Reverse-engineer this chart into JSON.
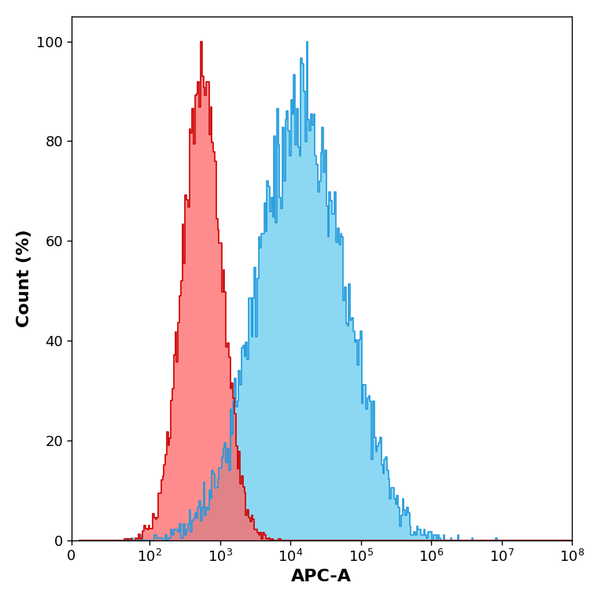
{
  "red_fill_color": "#FF6666",
  "red_line_color": "#CC0000",
  "blue_fill_color": "#66CCEE",
  "blue_line_color": "#2299DD",
  "red_fill_alpha": 0.75,
  "blue_fill_alpha": 0.75,
  "xlabel": "APC-A",
  "ylabel": "Count (%)",
  "ylim": [
    0,
    105
  ],
  "yticks": [
    0,
    20,
    40,
    60,
    80,
    100
  ],
  "background_color": "#ffffff",
  "xlabel_fontsize": 16,
  "ylabel_fontsize": 16,
  "tick_fontsize": 13,
  "line_width": 1.2,
  "red_log_mean": 2.75,
  "red_log_std": 0.28,
  "blue_log_mean": 4.15,
  "blue_log_std": 0.62,
  "n_samples": 12000,
  "n_bins": 350,
  "log_bin_min": 1.0,
  "log_bin_max": 8.0
}
